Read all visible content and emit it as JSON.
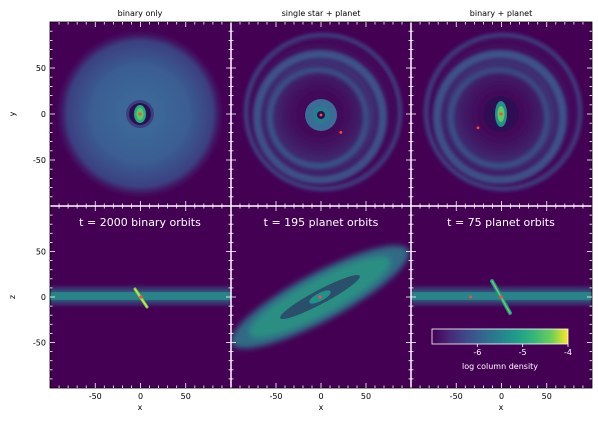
{
  "chart_data": {
    "type": "heatmap",
    "column_titles": [
      "binary only",
      "single star + planet",
      "binary + planet"
    ],
    "row_titles": [
      "t = 2000 binary orbits",
      "t = 195 planet orbits",
      "t = 75 planet orbits"
    ],
    "xlabel": "x",
    "ylabel_top": "y",
    "ylabel_bottom": "z",
    "xlim": [
      -100,
      100
    ],
    "ylim": [
      -100,
      100
    ],
    "xticks": [
      -50,
      0,
      50
    ],
    "yticks": [
      50,
      0,
      -50
    ],
    "colorbar": {
      "label": "log column density",
      "range": [
        -7,
        -4
      ],
      "ticks": [
        "-6",
        "-5",
        "-4"
      ],
      "tick_values": [
        -6,
        -5,
        -4
      ],
      "colormap": "viridis"
    },
    "panels": [
      {
        "id": "top-left",
        "view": "face-on",
        "case": "binary only"
      },
      {
        "id": "top-middle",
        "view": "face-on",
        "case": "single star + planet",
        "planet": [
          22,
          -20
        ]
      },
      {
        "id": "top-right",
        "view": "face-on",
        "case": "binary + planet",
        "planet": [
          -26,
          -15
        ]
      },
      {
        "id": "bottom-left",
        "view": "edge-on",
        "case": "binary only"
      },
      {
        "id": "bottom-middle",
        "view": "edge-on",
        "case": "single star + planet"
      },
      {
        "id": "bottom-right",
        "view": "edge-on",
        "case": "binary + planet",
        "planet": [
          -34,
          0
        ]
      }
    ],
    "colors": {
      "background": "#440154",
      "low": "#3b528b",
      "mid": "#21918c",
      "high": "#5ec962",
      "peak": "#fde725",
      "star": "#ff4b3a"
    }
  }
}
